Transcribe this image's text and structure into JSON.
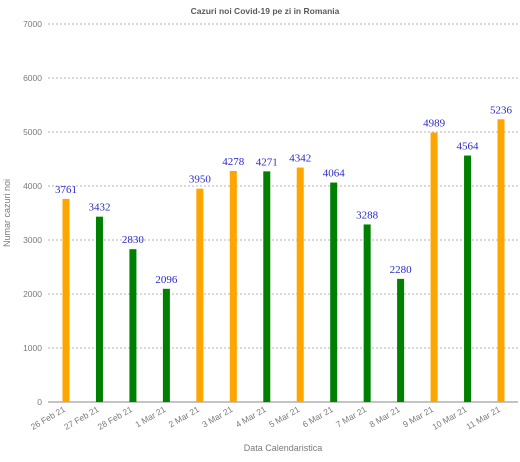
{
  "chart_data": {
    "type": "bar",
    "title": "Cazuri noi Covid-19 pe zi in Romania",
    "xlabel": "Data Calendaristica",
    "ylabel": "Numar cazuri noi",
    "ylim": [
      0,
      7000
    ],
    "yticks": [
      0,
      1000,
      2000,
      3000,
      4000,
      5000,
      6000,
      7000
    ],
    "grid": true,
    "categories": [
      "26 Feb 21",
      "27 Feb 21",
      "28 Feb 21",
      "1 Mar 21",
      "2 Mar 21",
      "3 Mar 21",
      "4 Mar 21",
      "5 Mar 21",
      "6 Mar 21",
      "7 Mar 21",
      "8 Mar 21",
      "9 Mar 21",
      "10 Mar 21",
      "11 Mar 21"
    ],
    "values": [
      3761,
      3432,
      2830,
      2096,
      3950,
      4278,
      4271,
      4342,
      4064,
      3288,
      2280,
      4989,
      4564,
      5236
    ],
    "bar_colors": [
      "#ffa500",
      "#008000",
      "#008000",
      "#008000",
      "#ffa500",
      "#ffa500",
      "#008000",
      "#ffa500",
      "#008000",
      "#008000",
      "#008000",
      "#ffa500",
      "#008000",
      "#ffa500"
    ]
  }
}
